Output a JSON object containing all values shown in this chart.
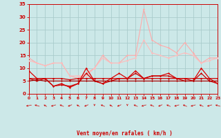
{
  "bg_color": "#cce8e8",
  "grid_color": "#aacccc",
  "xlabel": "Vent moyen/en rafales ( km/h )",
  "xlim": [
    0,
    23
  ],
  "ylim": [
    0,
    35
  ],
  "yticks": [
    0,
    5,
    10,
    15,
    20,
    25,
    30,
    35
  ],
  "xticks": [
    0,
    1,
    2,
    3,
    4,
    5,
    6,
    7,
    8,
    9,
    10,
    11,
    12,
    13,
    14,
    15,
    16,
    17,
    18,
    19,
    20,
    21,
    22,
    23
  ],
  "series": [
    {
      "color": "#ffaaaa",
      "lw": 0.8,
      "marker": "D",
      "markersize": 1.5,
      "values": [
        14,
        12,
        11,
        12,
        12,
        7,
        6,
        8,
        10,
        15,
        12,
        12,
        15,
        15,
        33,
        21,
        19,
        18,
        16,
        20,
        16,
        12,
        14,
        14
      ]
    },
    {
      "color": "#ffbbbb",
      "lw": 0.8,
      "marker": "D",
      "markersize": 1.5,
      "values": [
        13,
        12,
        11,
        12,
        12,
        7,
        7,
        7,
        10,
        14,
        12,
        12,
        13,
        14,
        21,
        16,
        15,
        14,
        15,
        16,
        15,
        12,
        13,
        14
      ]
    },
    {
      "color": "#dd0000",
      "lw": 0.9,
      "marker": "D",
      "markersize": 1.5,
      "values": [
        9,
        6,
        6,
        3,
        4,
        2.5,
        4,
        10,
        5,
        4,
        6,
        8,
        6,
        9,
        6,
        7,
        7,
        8,
        6,
        6,
        5,
        10,
        6,
        4
      ]
    },
    {
      "color": "#cc0000",
      "lw": 0.9,
      "marker": "D",
      "markersize": 1.5,
      "values": [
        6,
        5,
        6,
        3,
        3.5,
        3,
        4,
        8,
        5,
        4,
        5,
        6,
        6,
        8,
        6,
        7,
        7,
        7,
        6,
        5,
        5,
        8,
        5,
        4
      ]
    },
    {
      "color": "#cc0000",
      "lw": 0.9,
      "marker": "D",
      "markersize": 1.5,
      "values": [
        6,
        6,
        6,
        6,
        6,
        5.5,
        6,
        6,
        6,
        6,
        6,
        6,
        6,
        6,
        6,
        6,
        6,
        6,
        6,
        6,
        6,
        6,
        6,
        6
      ]
    },
    {
      "color": "#aa0000",
      "lw": 0.9,
      "marker": "D",
      "markersize": 1.5,
      "values": [
        5,
        5.5,
        5,
        5,
        5,
        5,
        5,
        5,
        5,
        5,
        5,
        5,
        5,
        5,
        5,
        5,
        5,
        5,
        5,
        5,
        5,
        5,
        5,
        5
      ]
    }
  ],
  "arrow_angles": [
    200,
    150,
    130,
    210,
    140,
    220,
    130,
    220,
    270,
    140,
    130,
    220,
    270,
    140,
    210,
    140,
    220,
    140,
    210,
    140,
    210,
    140,
    210,
    150
  ],
  "arrow_color": "#cc0000",
  "tick_color": "#cc0000",
  "xlabel_color": "#cc0000"
}
